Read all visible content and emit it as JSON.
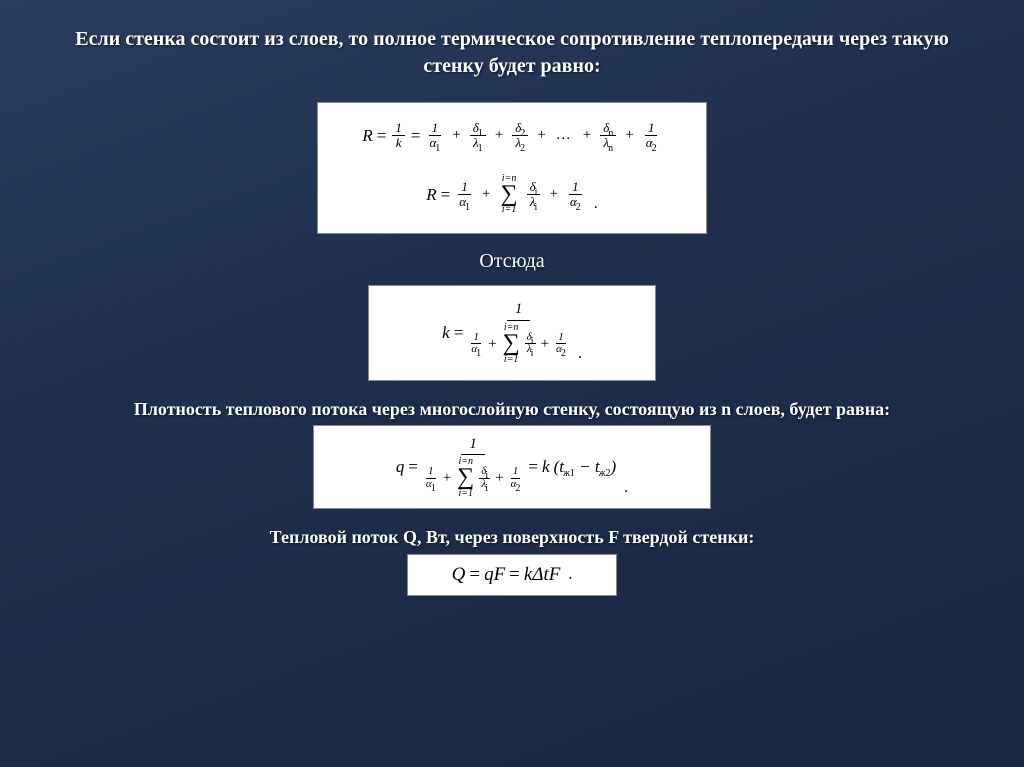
{
  "colors": {
    "background_gradient_start": "#2a3d5f",
    "background_gradient_mid": "#1e2f4d",
    "background_gradient_end": "#182641",
    "text": "#ffffff",
    "formula_bg": "#ffffff",
    "formula_text": "#000000",
    "formula_border": "#888888"
  },
  "typography": {
    "heading_fontsize_pt": 15,
    "sub_fontsize_pt": 13,
    "formula_family": "Times New Roman, serif",
    "body_family": "Georgia, serif"
  },
  "text": {
    "heading": "Если стенка состоит из слоев, то полное термическое сопротивление теплопередачи через такую стенку будет равно:",
    "label_hence": "Отсюда",
    "sub_flux": "Плотность теплового потока через многослойную стенку, состоящую из n слоев, будет равна:",
    "sub_heatflow": "Тепловой поток Q, Вт, через поверхность F твердой стенки:"
  },
  "formulas": {
    "eq1_expanded": {
      "lhs": "R",
      "step1": {
        "num": "1",
        "den": "k"
      },
      "terms": [
        {
          "num": "1",
          "den": "α",
          "den_sub": "1"
        },
        {
          "num": "δ",
          "num_sub": "1",
          "den": "λ",
          "den_sub": "1"
        },
        {
          "num": "δ",
          "num_sub": "2",
          "den": "λ",
          "den_sub": "2"
        }
      ],
      "dots": "…",
      "last_terms": [
        {
          "num": "δ",
          "num_sub": "n",
          "den": "λ",
          "den_sub": "n"
        },
        {
          "num": "1",
          "den": "α",
          "den_sub": "2"
        }
      ]
    },
    "eq1_sum": {
      "lhs": "R",
      "first": {
        "num": "1",
        "den": "α",
        "den_sub": "1"
      },
      "sum": {
        "upper": "i=n",
        "lower": "i=1",
        "term": {
          "num": "δ",
          "num_sub": "i",
          "den": "λ",
          "den_sub": "i"
        }
      },
      "last": {
        "num": "1",
        "den": "α",
        "den_sub": "2"
      }
    },
    "eq2_k": {
      "lhs": "k",
      "numerator": "1",
      "denom": {
        "first": {
          "num": "1",
          "den": "α",
          "den_sub": "1"
        },
        "sum": {
          "upper": "i=n",
          "lower": "i=1",
          "term": {
            "num": "δ",
            "num_sub": "i",
            "den": "λ",
            "den_sub": "i"
          }
        },
        "last": {
          "num": "1",
          "den": "α",
          "den_sub": "2"
        }
      }
    },
    "eq3_q": {
      "lhs": "q",
      "numerator": "1",
      "denom": {
        "first": {
          "num": "1",
          "den": "α",
          "den_sub": "1"
        },
        "sum": {
          "upper": "i=n",
          "lower": "i=1",
          "term": {
            "num": "δ",
            "num_sub": "i",
            "den": "λ",
            "den_sub": "i"
          }
        },
        "last": {
          "num": "1",
          "den": "α",
          "den_sub": "2"
        }
      },
      "rhs": {
        "coef": "k",
        "paren": "(t",
        "sub1": "ж1",
        "mid": " − t",
        "sub2": "ж2",
        "close": ")"
      }
    },
    "eq4_Q": {
      "text_parts": [
        "Q",
        " = ",
        "qF",
        " = ",
        "kΔtF",
        "."
      ]
    }
  }
}
